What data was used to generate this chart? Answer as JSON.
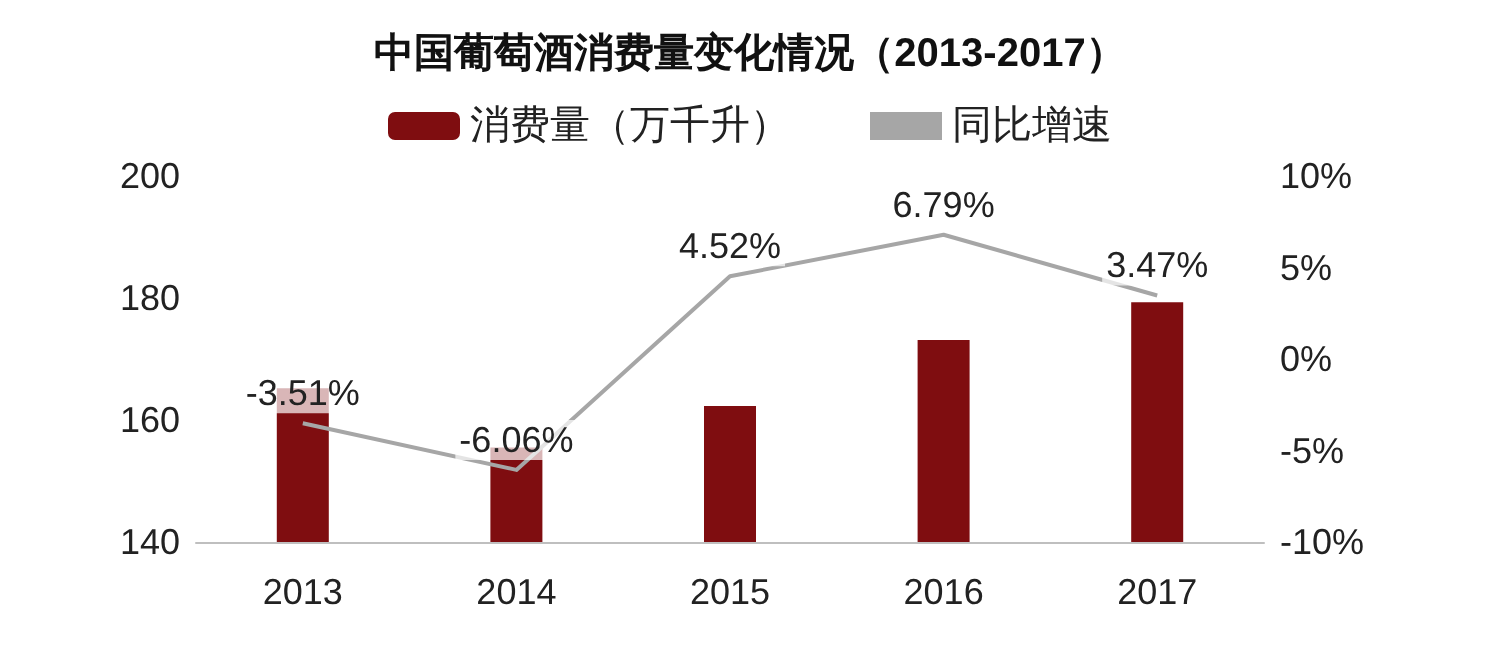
{
  "chart_data": {
    "type": "bar",
    "title": "中国葡萄酒消费量变化情况（2013-2017）",
    "categories": [
      "2013",
      "2014",
      "2015",
      "2016",
      "2017"
    ],
    "series": [
      {
        "name": "消费量（万千升）",
        "color": "#7f0d10",
        "values": [
          165.2,
          155.5,
          162.3,
          173.1,
          179.3
        ]
      },
      {
        "name": "同比增速",
        "type": "line",
        "axis": "y2",
        "color": "#a6a6a6",
        "values": [
          -3.51,
          -6.06,
          4.52,
          6.79,
          3.47
        ],
        "value_labels": [
          "-3.51%",
          "-6.06%",
          "4.52%",
          "6.79%",
          "3.47%"
        ]
      }
    ],
    "ylim": [
      140,
      200
    ],
    "yticks": [
      140,
      160,
      180,
      200
    ],
    "y2lim": [
      -10,
      10
    ],
    "y2ticks": [
      {
        "value": -10,
        "label": "-10%"
      },
      {
        "value": -5,
        "label": "-5%"
      },
      {
        "value": 0,
        "label": "0%"
      },
      {
        "value": 5,
        "label": "5%"
      },
      {
        "value": 10,
        "label": "10%"
      }
    ],
    "grid": false,
    "legend": "top",
    "marker": "none"
  }
}
